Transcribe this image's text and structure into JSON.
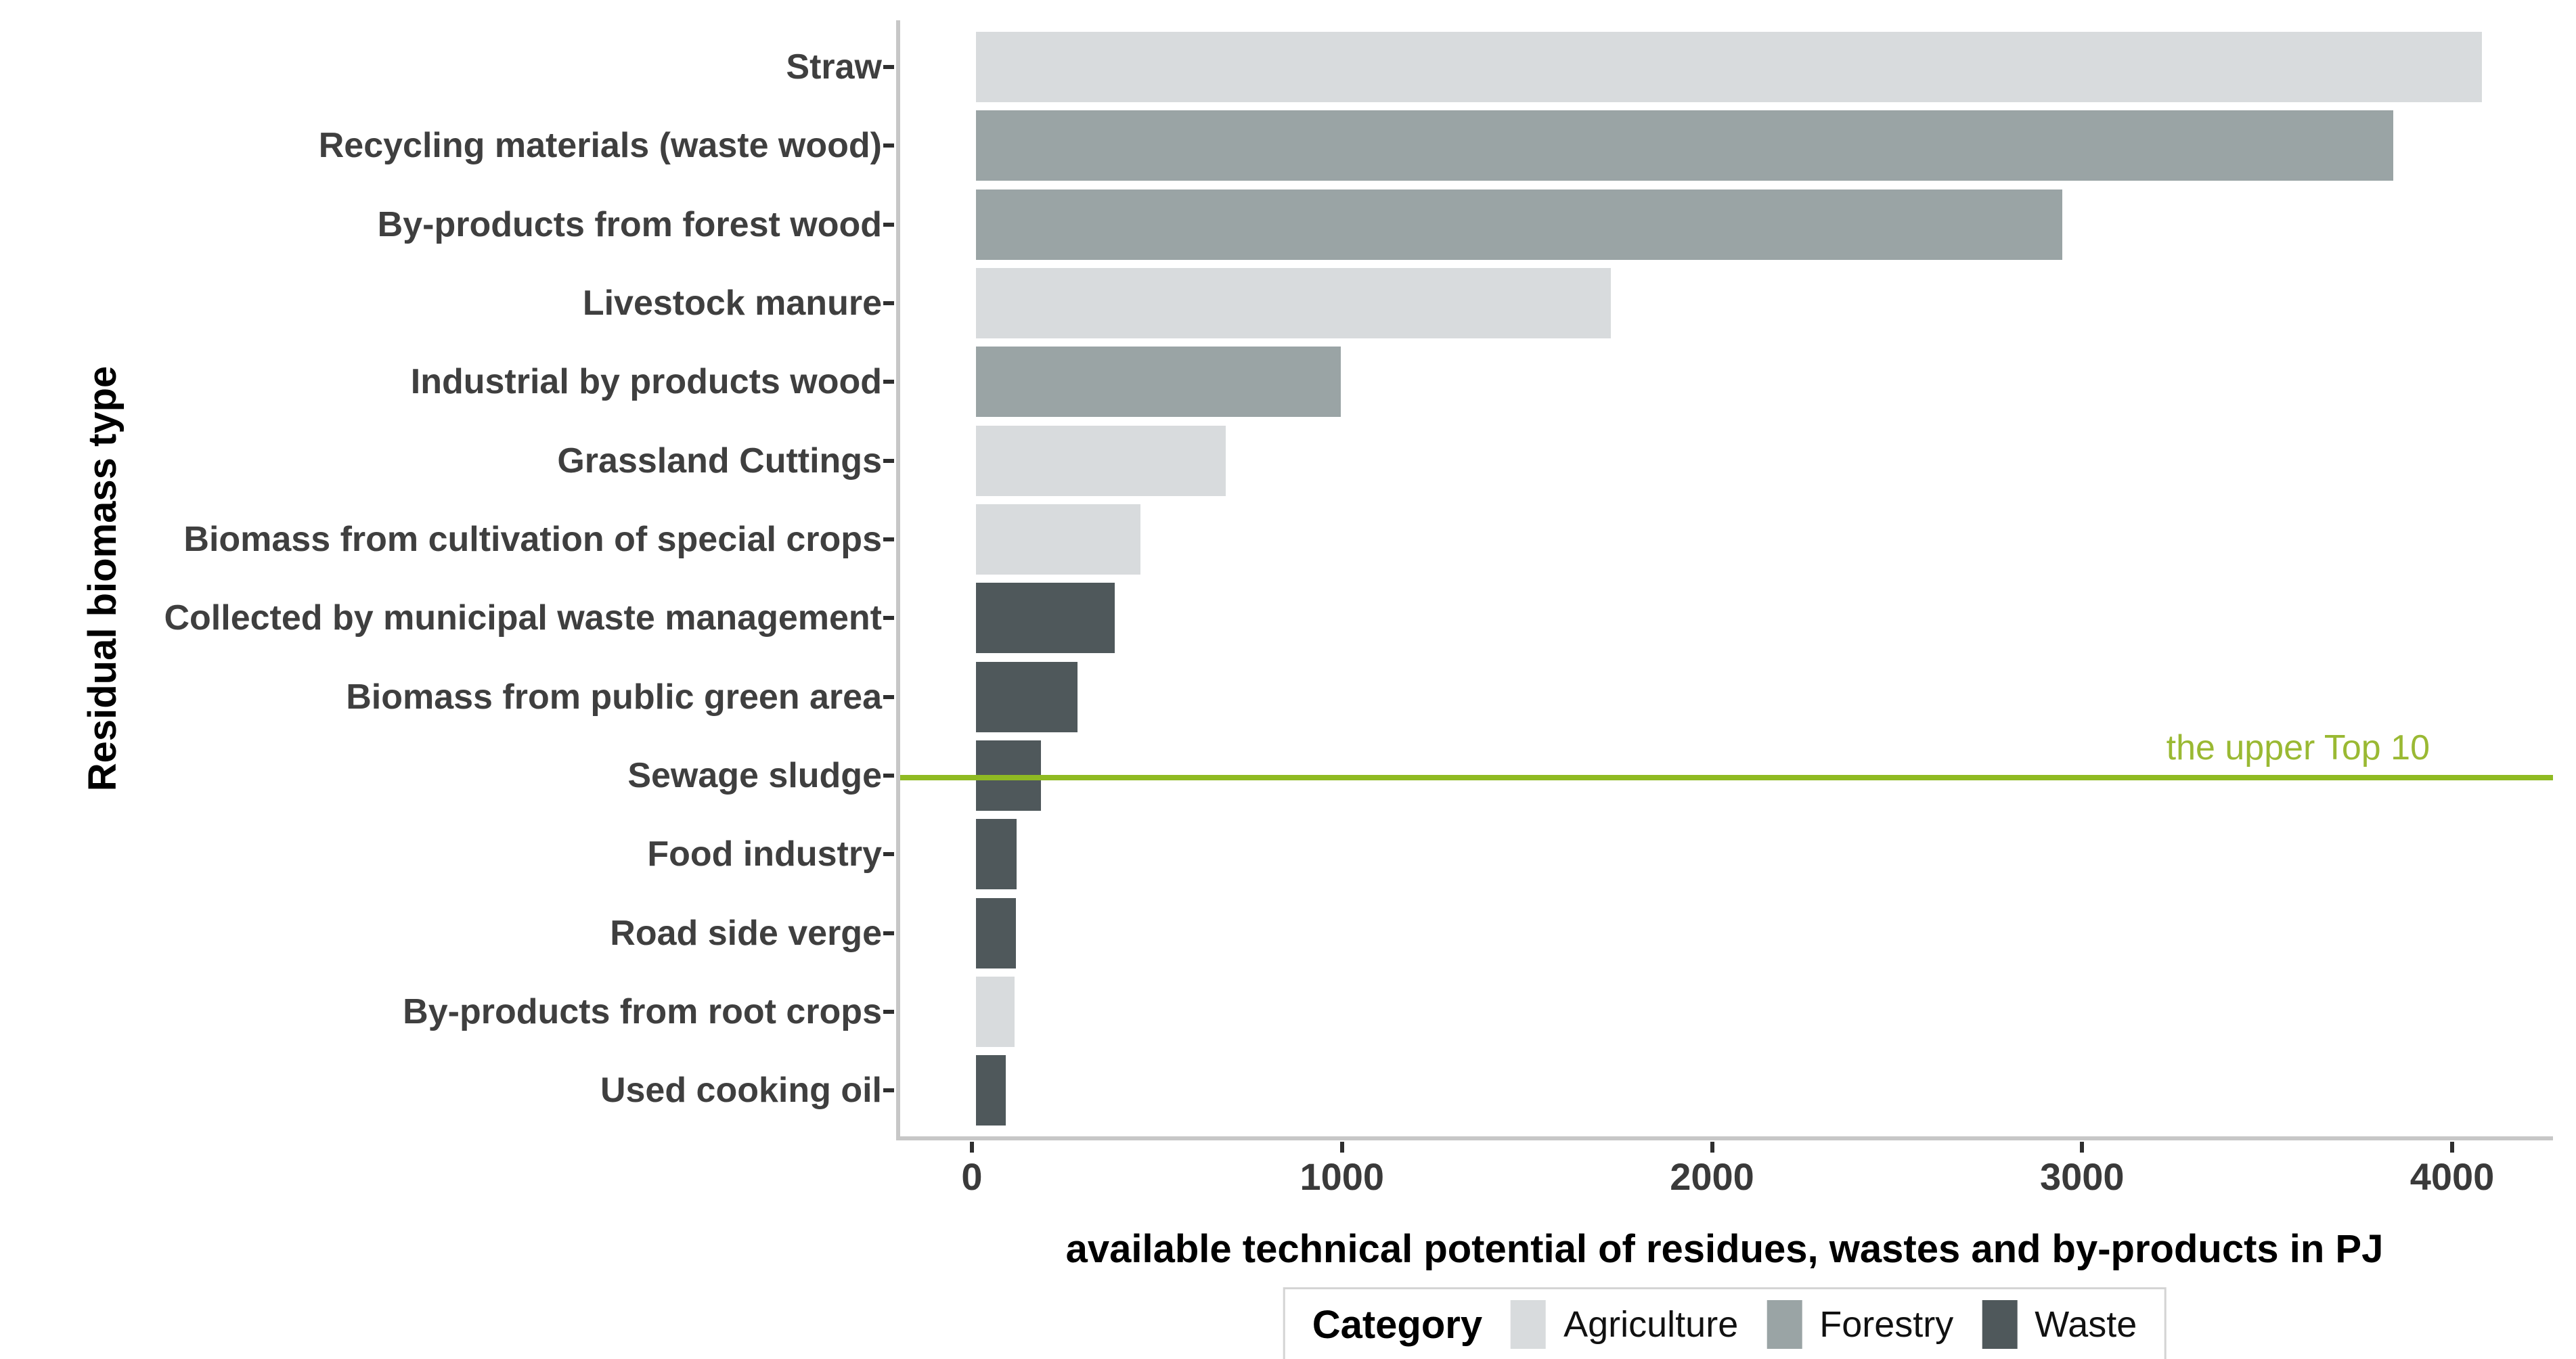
{
  "chart_data": {
    "type": "bar",
    "orientation": "horizontal",
    "title": "",
    "xlabel": "available technical potential of residues, wastes and by-products in PJ",
    "ylabel": "Residual biomass type",
    "x_ticks": [
      0,
      1000,
      2000,
      3000,
      4000
    ],
    "xlim": [
      -205,
      4275
    ],
    "grid": false,
    "legend": {
      "title": "Category",
      "position": "bottom",
      "entries": [
        {
          "label": "Agriculture",
          "color": "#d8dbdd"
        },
        {
          "label": "Forestry",
          "color": "#9aa4a5"
        },
        {
          "label": "Waste",
          "color": "#4f585b"
        }
      ]
    },
    "bars": [
      {
        "label": "Straw",
        "value": 4070,
        "category": "Agriculture"
      },
      {
        "label": "Recycling materials (waste wood)",
        "value": 3830,
        "category": "Forestry"
      },
      {
        "label": "By-products from forest wood",
        "value": 2935,
        "category": "Forestry"
      },
      {
        "label": "Livestock manure",
        "value": 1715,
        "category": "Agriculture"
      },
      {
        "label": "Industrial by products wood",
        "value": 985,
        "category": "Forestry"
      },
      {
        "label": "Grassland Cuttings",
        "value": 675,
        "category": "Agriculture"
      },
      {
        "label": "Biomass from cultivation of special crops",
        "value": 445,
        "category": "Agriculture"
      },
      {
        "label": "Collected by municipal waste management",
        "value": 375,
        "category": "Waste"
      },
      {
        "label": "Biomass from public green area",
        "value": 275,
        "category": "Waste"
      },
      {
        "label": "Sewage sludge",
        "value": 175,
        "category": "Waste"
      },
      {
        "label": "Food industry",
        "value": 110,
        "category": "Waste"
      },
      {
        "label": "Road side verge",
        "value": 108,
        "category": "Waste"
      },
      {
        "label": "By-products from root crops",
        "value": 105,
        "category": "Agriculture"
      },
      {
        "label": "Used cooking oil",
        "value": 80,
        "category": "Waste"
      }
    ],
    "annotation": {
      "text": "the upper Top 10",
      "marks_boundary_after_rank": 10,
      "color": "#9ab933"
    }
  },
  "colors": {
    "axis_line": "#c7c7c7",
    "tick": "#2f2f2f",
    "category_label": "#3f3f3f",
    "annotation_line": "#8fba22",
    "annotation_text": "#9ab933"
  }
}
